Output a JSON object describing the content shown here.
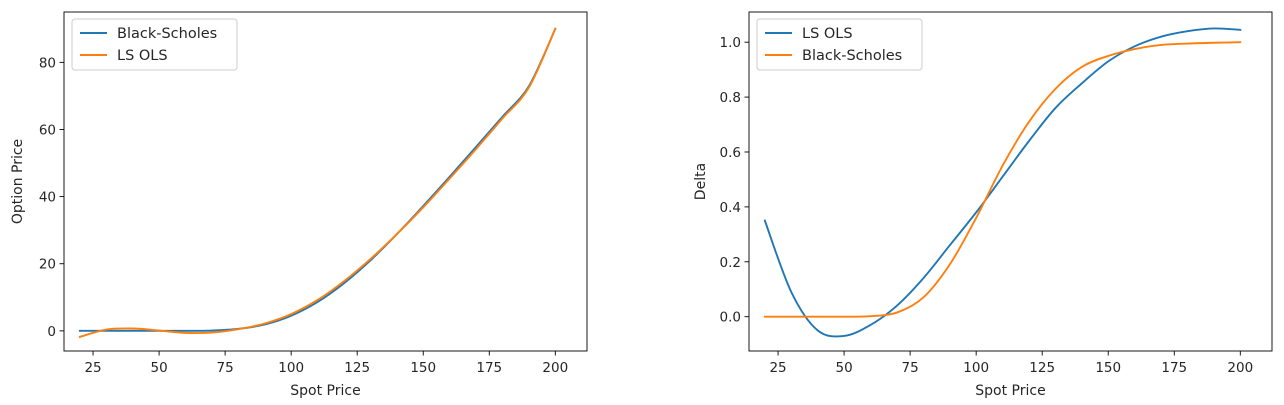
{
  "chart_data": [
    {
      "type": "line",
      "xlabel": "Spot Price",
      "ylabel": "Option Price",
      "xlim": [
        14,
        212
      ],
      "ylim": [
        -6,
        95
      ],
      "xticks": [
        25,
        50,
        75,
        100,
        125,
        150,
        175,
        200
      ],
      "yticks": [
        0,
        20,
        40,
        60,
        80
      ],
      "legend_position": "top-left",
      "grid": false,
      "series": [
        {
          "name": "Black-Scholes",
          "color": "#1f77b4",
          "x": [
            20,
            30,
            40,
            50,
            60,
            70,
            80,
            90,
            100,
            110,
            120,
            130,
            140,
            150,
            160,
            170,
            180,
            190,
            200
          ],
          "y": [
            0,
            0,
            0,
            0,
            0,
            0.1,
            0.6,
            1.9,
            4.5,
            8.6,
            14.2,
            21.0,
            28.8,
            37.2,
            45.9,
            54.8,
            63.8,
            72.9,
            90
          ]
        },
        {
          "name": "LS OLS",
          "color": "#ff7f0e",
          "x": [
            20,
            30,
            40,
            50,
            60,
            70,
            80,
            90,
            100,
            110,
            120,
            130,
            140,
            150,
            160,
            170,
            180,
            190,
            200
          ],
          "y": [
            -1.8,
            0.4,
            0.7,
            0.1,
            -0.6,
            -0.5,
            0.5,
            2.2,
            5.0,
            9.2,
            14.8,
            21.4,
            28.8,
            36.8,
            45.4,
            54.2,
            63.3,
            72.5,
            90
          ]
        }
      ]
    },
    {
      "type": "line",
      "xlabel": "Spot Price",
      "ylabel": "Delta",
      "xlim": [
        14,
        212
      ],
      "ylim": [
        -0.125,
        1.11
      ],
      "xticks": [
        25,
        50,
        75,
        100,
        125,
        150,
        175,
        200
      ],
      "yticks": [
        "0.0",
        "0.2",
        "0.4",
        "0.6",
        "0.8",
        "1.0"
      ],
      "legend_position": "top-left",
      "grid": false,
      "series": [
        {
          "name": "LS OLS",
          "color": "#1f77b4",
          "x": [
            20,
            30,
            40,
            50,
            60,
            70,
            80,
            90,
            100,
            110,
            120,
            130,
            140,
            150,
            160,
            170,
            180,
            190,
            200
          ],
          "y": [
            0.35,
            0.09,
            -0.05,
            -0.07,
            -0.03,
            0.04,
            0.14,
            0.26,
            0.38,
            0.51,
            0.64,
            0.76,
            0.85,
            0.93,
            0.985,
            1.02,
            1.04,
            1.05,
            1.045
          ]
        },
        {
          "name": "Black-Scholes",
          "color": "#ff7f0e",
          "x": [
            20,
            30,
            40,
            50,
            60,
            70,
            80,
            90,
            100,
            110,
            120,
            130,
            140,
            150,
            160,
            170,
            180,
            190,
            200
          ],
          "y": [
            0,
            0,
            0,
            0,
            0.002,
            0.015,
            0.07,
            0.19,
            0.36,
            0.55,
            0.71,
            0.83,
            0.91,
            0.95,
            0.975,
            0.99,
            0.995,
            0.998,
            1.0
          ]
        }
      ]
    }
  ]
}
